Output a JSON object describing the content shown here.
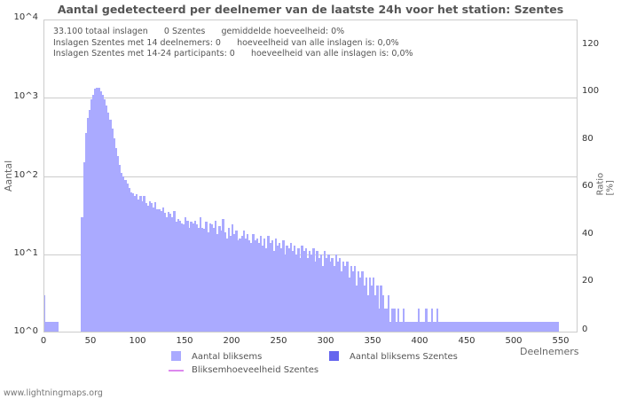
{
  "chart_data": {
    "type": "bar",
    "title": "Aantal gedetecteerd per deelnemer van de laatste 24h voor het station: Szentes",
    "xlabel": "Deelnemers",
    "ylabel": "Aantal",
    "ylabel_right": "Ratio [%]",
    "yscale": "log",
    "ylim": [
      1,
      10000
    ],
    "xlim": [
      0,
      570
    ],
    "y_ticks": [
      "10^4",
      "10^3",
      "10^2",
      "10^1",
      "10^0"
    ],
    "y_right_ticks": [
      "120",
      "100",
      "80",
      "60",
      "40",
      "20",
      "0"
    ],
    "x_ticks": [
      "0",
      "50",
      "100",
      "150",
      "200",
      "250",
      "300",
      "350",
      "400",
      "450",
      "500",
      "550"
    ],
    "grid": true,
    "legend": [
      "Aantal bliksems",
      "Aantal bliksems Szentes",
      "Bliksemhoeveelheid Szentes"
    ],
    "series": [
      {
        "name": "Aantal bliksems",
        "color": "#aaaaff",
        "bin_width": 2,
        "x_start": 0,
        "values": [
          3,
          1,
          1,
          1,
          1,
          1,
          1,
          1,
          0,
          0,
          0,
          0,
          0,
          0,
          0,
          0,
          0,
          0,
          0,
          0,
          30,
          150,
          350,
          550,
          700,
          950,
          1100,
          1300,
          1350,
          1350,
          1200,
          1100,
          950,
          800,
          650,
          520,
          400,
          300,
          230,
          180,
          140,
          110,
          100,
          90,
          80,
          70,
          62,
          60,
          55,
          58,
          50,
          55,
          48,
          56,
          45,
          42,
          48,
          45,
          40,
          46,
          38,
          38,
          36,
          40,
          34,
          30,
          35,
          33,
          30,
          36,
          26,
          28,
          27,
          25,
          24,
          30,
          27,
          22,
          26,
          25,
          27,
          24,
          22,
          30,
          22,
          21,
          26,
          19,
          25,
          24,
          22,
          27,
          18,
          23,
          20,
          28,
          19,
          16,
          22,
          17,
          24,
          18,
          20,
          15,
          16,
          17,
          20,
          16,
          18,
          15,
          14,
          18,
          15,
          16,
          14,
          17,
          13,
          16,
          12,
          17,
          14,
          15,
          11,
          16,
          13,
          14,
          12,
          15,
          10,
          13,
          12,
          14,
          11,
          13,
          10,
          12,
          9,
          13,
          11,
          12,
          9,
          11,
          10,
          12,
          8,
          11,
          9,
          10,
          7,
          11,
          9,
          10,
          8,
          9,
          7,
          10,
          8,
          9,
          6,
          8,
          7,
          8,
          5,
          7,
          6,
          7,
          4,
          6,
          5,
          6,
          4,
          5,
          3,
          5,
          4,
          5,
          3,
          4,
          2,
          4,
          3,
          2,
          2,
          3,
          1,
          2,
          2,
          1,
          2,
          1,
          1,
          2,
          1,
          1,
          1,
          1,
          1,
          1,
          1,
          2,
          1,
          1,
          1,
          2,
          1,
          1,
          2,
          1,
          1,
          2,
          1,
          1,
          1,
          1,
          1,
          1,
          1,
          1,
          1,
          1,
          1,
          1,
          1,
          1,
          1,
          1,
          1,
          1,
          1,
          1,
          1,
          1,
          1,
          1,
          1,
          1,
          1,
          1,
          1,
          1,
          1,
          1,
          1,
          1,
          1,
          1,
          1,
          1,
          1,
          1,
          1,
          1,
          1,
          1,
          1,
          1,
          1,
          1,
          1,
          1,
          1,
          1,
          1,
          1,
          1,
          1,
          1,
          1,
          1,
          1,
          1,
          1,
          1,
          1
        ]
      },
      {
        "name": "Aantal bliksems Szentes",
        "color": "#6666ee",
        "values": []
      },
      {
        "name": "Bliksemhoeveelheid Szentes",
        "color": "#dd88ee",
        "type": "line",
        "values": []
      }
    ]
  },
  "title": "Aantal gedetecteerd per deelnemer van de laatste 24h voor het station: Szentes",
  "info": {
    "line1": "33.100 totaal inslagen      0 Szentes      gemiddelde hoeveelheid: 0%",
    "line2": "Inslagen Szentes met 14 deelnemers: 0      hoeveelheid van alle inslagen is: 0,0%",
    "line3": "Inslagen Szentes met 14-24 participants: 0      hoeveelheid van alle inslagen is: 0,0%"
  },
  "axes": {
    "y_left_label": "Aantal",
    "y_right_label": "Ratio [%]",
    "x_label": "Deelnemers",
    "y_ticks": [
      "10^4",
      "10^3",
      "10^2",
      "10^1",
      "10^0"
    ],
    "y_right_ticks": [
      "120",
      "100",
      "80",
      "60",
      "40",
      "20",
      "0"
    ],
    "x_ticks": [
      "0",
      "50",
      "100",
      "150",
      "200",
      "250",
      "300",
      "350",
      "400",
      "450",
      "500",
      "550"
    ]
  },
  "legend": {
    "item1": "Aantal bliksems",
    "item2": "Aantal bliksems Szentes",
    "item3": "Bliksemhoeveelheid Szentes",
    "color1": "#aaaaff",
    "color2": "#6666ee",
    "color3": "#dd88ee"
  },
  "footer": "www.lightningmaps.org"
}
